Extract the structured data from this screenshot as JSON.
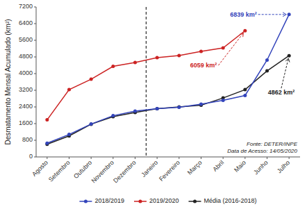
{
  "chart_data": {
    "type": "line",
    "categories": [
      "Agosto",
      "Setembro",
      "Outubro",
      "Novembro",
      "Dezembro",
      "Janeiro",
      "Fevereiro",
      "Março",
      "Abril",
      "Maio",
      "Junho",
      "Julho"
    ],
    "series": [
      {
        "name": "2018/2019",
        "color": "#3344bb",
        "values": [
          660,
          1080,
          1580,
          1980,
          2200,
          2320,
          2380,
          2530,
          2720,
          2950,
          4650,
          6839
        ]
      },
      {
        "name": "2019/2020",
        "color": "#cc2222",
        "values": [
          1780,
          3230,
          3730,
          4350,
          4530,
          4770,
          4870,
          5070,
          5230,
          6059,
          null,
          null
        ]
      },
      {
        "name": "Média (2016-2018)",
        "color": "#222222",
        "values": [
          610,
          1010,
          1570,
          1930,
          2130,
          2320,
          2400,
          2480,
          2830,
          3230,
          4130,
          4862
        ]
      }
    ],
    "ylabel": "Desmatamento Mensal Acumulado (km²)",
    "ylim": [
      0,
      7200
    ],
    "yticks": [
      0,
      800,
      1600,
      2400,
      3200,
      4000,
      4800,
      5600,
      6400,
      7200
    ],
    "annotations": [
      {
        "text": "6839 km²",
        "x": "Julho",
        "y": 6839,
        "color": "#3344bb"
      },
      {
        "text": "6059 km²",
        "x": "Maio",
        "y": 6059,
        "color": "#cc2222"
      },
      {
        "text": "4862 km²",
        "x": "Julho",
        "y": 4862,
        "color": "#222222"
      },
      {
        "type": "vline",
        "after": "Dezembro",
        "line_style": "dashed",
        "color": "#000000"
      }
    ],
    "source": "Fonte: DETER/INPE\nData de Acesso: 14/05/2020",
    "marker": "circle",
    "line_style": "solid",
    "grid": false,
    "legend": "bottom"
  }
}
